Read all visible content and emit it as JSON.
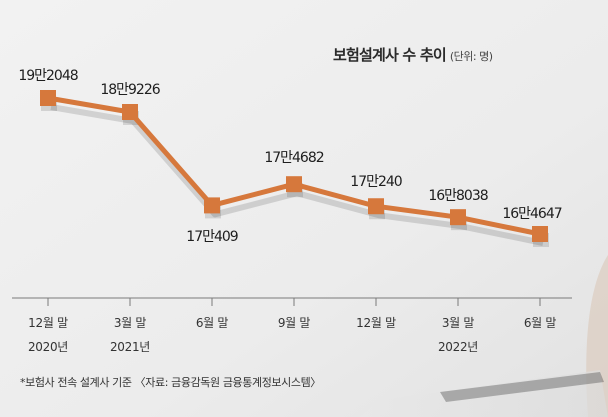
{
  "chart_data": {
    "type": "line",
    "title": "보험설계사 수 추이",
    "unit_note": "(단위: 명)",
    "categories": [
      [
        "12월 말",
        "2020년"
      ],
      [
        "3월 말",
        "2021년"
      ],
      [
        "6월 말",
        ""
      ],
      [
        "9월 말",
        ""
      ],
      [
        "12월 말",
        ""
      ],
      [
        "3월 말",
        "2022년"
      ],
      [
        "6월 말",
        ""
      ]
    ],
    "values": [
      192048,
      189226,
      170409,
      174682,
      170240,
      168038,
      164647
    ],
    "data_labels": [
      "19만2048",
      "18만9226",
      "17만409",
      "17만4682",
      "17만240",
      "16만8038",
      "16만4647"
    ],
    "line_color": "#d6783c",
    "marker_color": "#d6783c",
    "footnote": "*보험사 전속 설계사 기준 〈자료: 금융감독원 금융통계정보시스템〉"
  }
}
